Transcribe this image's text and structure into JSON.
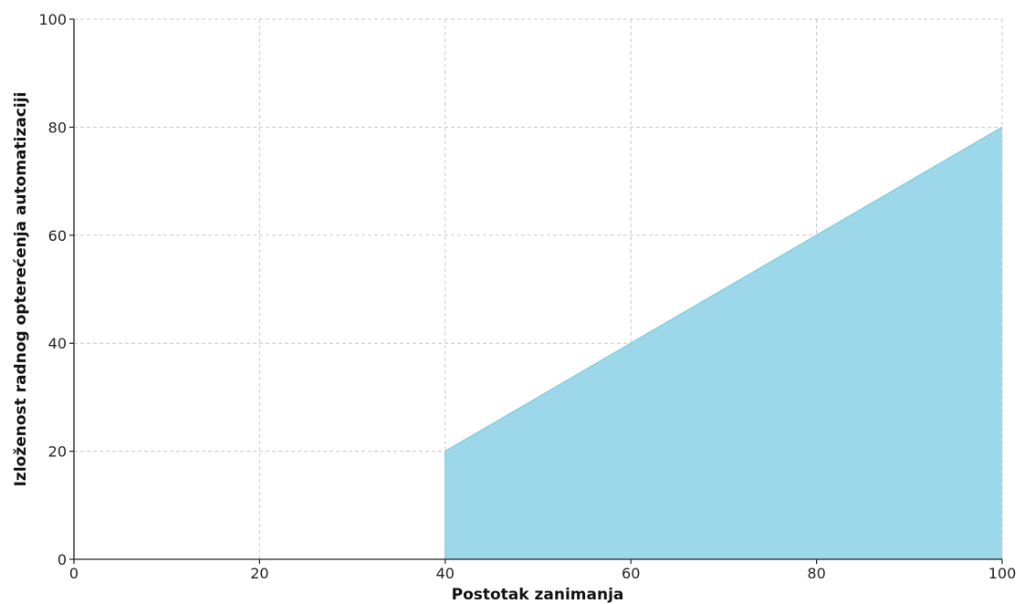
{
  "chart_data": {
    "type": "area",
    "xlabel": "Postotak zanimanja",
    "ylabel": "Izloženost radnog opterećenja automatizaciji",
    "xlim": [
      0,
      100
    ],
    "ylim": [
      0,
      100
    ],
    "xticks": [
      0,
      20,
      40,
      60,
      80,
      100
    ],
    "yticks": [
      0,
      20,
      40,
      60,
      80,
      100
    ],
    "grid": true,
    "series": [
      {
        "x": [
          40,
          40,
          60,
          80,
          100
        ],
        "y": [
          0,
          20,
          40,
          60,
          80
        ],
        "color": "#9dd8ea",
        "edge_color": "#85cfe3"
      }
    ]
  }
}
